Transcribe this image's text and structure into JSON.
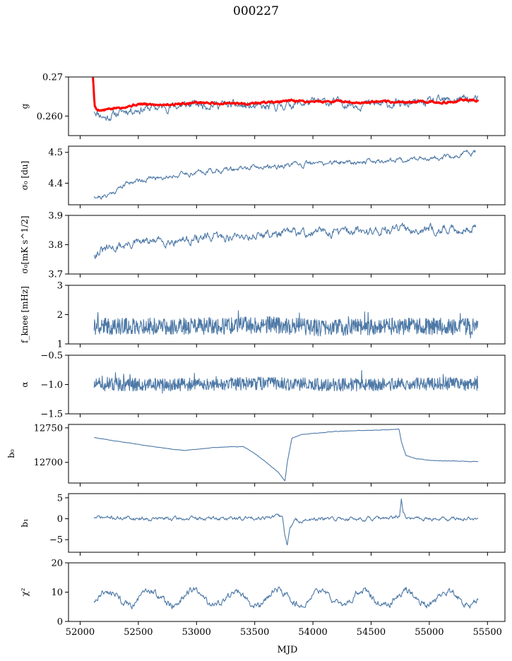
{
  "figure": {
    "title": "000227",
    "xlabel": "MJD"
  },
  "chart_data": [
    {
      "type": "line",
      "panel": "g",
      "ylabel": "g",
      "ylim": [
        0.255,
        0.27
      ],
      "yticks": [
        0.26,
        0.27
      ],
      "yticklabels": [
        "0.260",
        "0.27"
      ],
      "xlim": [
        51900,
        55650
      ],
      "series": [
        {
          "color": "#4e79a7",
          "kind": "noisy",
          "x": [
            52120,
            52170,
            52220,
            52300,
            52400,
            52600,
            52800,
            53000,
            53200,
            53400,
            53600,
            53800,
            54000,
            54200,
            54400,
            54600,
            54800,
            55000,
            55200,
            55300,
            55420
          ],
          "values": [
            0.2615,
            0.2605,
            0.2595,
            0.2605,
            0.2615,
            0.262,
            0.2625,
            0.263,
            0.263,
            0.2625,
            0.262,
            0.263,
            0.2635,
            0.2635,
            0.263,
            0.263,
            0.263,
            0.2635,
            0.264,
            0.2645,
            0.264
          ],
          "noise": 0.0008,
          "seed": 11
        },
        {
          "color": "#ff0000",
          "kind": "smooth",
          "x": [
            52110,
            52125,
            52140,
            52200,
            52300,
            52500,
            52800,
            53000,
            53200,
            53400,
            53600,
            53800,
            54000,
            54200,
            54400,
            54600,
            54800,
            55000,
            55200,
            55300,
            55420
          ],
          "values": [
            0.27,
            0.2625,
            0.2617,
            0.2615,
            0.262,
            0.263,
            0.263,
            0.2635,
            0.2632,
            0.2632,
            0.2635,
            0.2638,
            0.2637,
            0.2638,
            0.2634,
            0.2636,
            0.2635,
            0.2637,
            0.2634,
            0.2643,
            0.2638
          ],
          "noise": 0.0002,
          "seed": 5
        }
      ]
    },
    {
      "type": "line",
      "panel": "sigma0_du",
      "ylabel": "σ₀ [du]",
      "ylim": [
        4.33,
        4.52
      ],
      "yticks": [
        4.4,
        4.5
      ],
      "yticklabels": [
        "4.4",
        "4.5"
      ],
      "xlim": [
        51900,
        55650
      ],
      "series": [
        {
          "color": "#4e79a7",
          "kind": "noisy",
          "x": [
            52120,
            52200,
            52300,
            52400,
            52500,
            52700,
            52900,
            53100,
            53300,
            53500,
            53700,
            53900,
            54100,
            54300,
            54500,
            54700,
            54900,
            55100,
            55200,
            55300,
            55400
          ],
          "values": [
            4.36,
            4.355,
            4.375,
            4.4,
            4.41,
            4.42,
            4.43,
            4.44,
            4.445,
            4.45,
            4.455,
            4.46,
            4.465,
            4.47,
            4.47,
            4.475,
            4.48,
            4.485,
            4.48,
            4.5,
            4.5
          ],
          "noise": 0.006,
          "seed": 21
        }
      ]
    },
    {
      "type": "line",
      "panel": "sigma0_mk",
      "ylabel": "σ₀[mK s^1/2]",
      "ylim": [
        3.7,
        3.9
      ],
      "yticks": [
        3.7,
        3.8,
        3.9
      ],
      "yticklabels": [
        "3.7",
        "3.8",
        "3.9"
      ],
      "xlim": [
        51900,
        55650
      ],
      "series": [
        {
          "color": "#4e79a7",
          "kind": "noisy",
          "x": [
            52120,
            52200,
            52400,
            52600,
            52800,
            53000,
            53200,
            53400,
            53600,
            53800,
            54000,
            54200,
            54400,
            54600,
            54800,
            55000,
            55200,
            55300,
            55400
          ],
          "values": [
            3.77,
            3.78,
            3.8,
            3.81,
            3.815,
            3.82,
            3.825,
            3.83,
            3.835,
            3.84,
            3.84,
            3.845,
            3.845,
            3.85,
            3.855,
            3.855,
            3.85,
            3.855,
            3.855
          ],
          "noise": 0.011,
          "seed": 31
        }
      ]
    },
    {
      "type": "line",
      "panel": "fknee",
      "ylabel": "f_knee [mHz]",
      "ylim": [
        1,
        3
      ],
      "yticks": [
        1,
        2,
        3
      ],
      "yticklabels": [
        "1",
        "2",
        "3"
      ],
      "xlim": [
        51900,
        55650
      ],
      "series": [
        {
          "color": "#4e79a7",
          "kind": "spiky",
          "x": [
            52120,
            52600,
            53100,
            53600,
            54100,
            54600,
            55100,
            55420
          ],
          "values": [
            1.6,
            1.6,
            1.6,
            1.65,
            1.55,
            1.6,
            1.6,
            1.6
          ],
          "noise": 0.18,
          "seed": 41
        }
      ]
    },
    {
      "type": "line",
      "panel": "alpha",
      "ylabel": "α",
      "ylim": [
        -1.5,
        -0.5
      ],
      "yticks": [
        -1.5,
        -1.0,
        -0.5
      ],
      "yticklabels": [
        "−1.5",
        "−1.0",
        "−0.5"
      ],
      "xlim": [
        51900,
        55650
      ],
      "series": [
        {
          "color": "#4e79a7",
          "kind": "spiky",
          "x": [
            52120,
            52600,
            53100,
            53600,
            54100,
            54600,
            55100,
            55420
          ],
          "values": [
            -1.0,
            -1.0,
            -1.0,
            -0.98,
            -1.0,
            -1.0,
            -0.98,
            -1.0
          ],
          "noise": 0.07,
          "seed": 51
        }
      ]
    },
    {
      "type": "line",
      "panel": "b0",
      "ylabel": "b₀",
      "ylim": [
        12670,
        12755
      ],
      "yticks": [
        12700,
        12750
      ],
      "yticklabels": [
        "12700",
        "12750"
      ],
      "xlim": [
        51900,
        55650
      ],
      "series": [
        {
          "color": "#4e79a7",
          "kind": "smooth",
          "x": [
            52120,
            52300,
            52500,
            52700,
            52900,
            53000,
            53200,
            53400,
            53500,
            53600,
            53700,
            53760,
            53780,
            53820,
            53900,
            54000,
            54200,
            54400,
            54600,
            54740,
            54760,
            54800,
            54900,
            55000,
            55200,
            55420
          ],
          "values": [
            12736,
            12731,
            12726,
            12721,
            12717,
            12719,
            12722,
            12723,
            12713,
            12700,
            12686,
            12673,
            12700,
            12735,
            12740,
            12742,
            12745,
            12746,
            12747,
            12748,
            12730,
            12710,
            12705,
            12703,
            12702,
            12701
          ],
          "noise": 0.25,
          "seed": 61
        }
      ]
    },
    {
      "type": "line",
      "panel": "b1",
      "ylabel": "b₁",
      "ylim": [
        -8,
        6
      ],
      "yticks": [
        -5,
        0,
        5
      ],
      "yticklabels": [
        "−5",
        "0",
        "5"
      ],
      "xlim": [
        51900,
        55650
      ],
      "series": [
        {
          "color": "#4e79a7",
          "kind": "smooth",
          "x": [
            52120,
            52800,
            53400,
            53700,
            53740,
            53760,
            53780,
            53800,
            53850,
            54200,
            54700,
            54745,
            54760,
            54775,
            54800,
            55000,
            55420
          ],
          "values": [
            0.3,
            0.0,
            0.1,
            0.6,
            0.3,
            -4,
            -6.5,
            -2,
            -0.5,
            0.0,
            0.0,
            1.0,
            5.2,
            1.2,
            0.1,
            0.0,
            0.0
          ],
          "noise": 0.35,
          "seed": 71
        }
      ]
    },
    {
      "type": "line",
      "panel": "chi2",
      "ylabel": "χ²",
      "ylim": [
        0,
        20
      ],
      "yticks": [
        0,
        10,
        20
      ],
      "yticklabels": [
        "0",
        "10",
        "20"
      ],
      "xlim": [
        51900,
        55650
      ],
      "series": [
        {
          "color": "#4e79a7",
          "kind": "periodic",
          "x": [
            52120,
            55420
          ],
          "values": [
            8,
            8
          ],
          "amplitude": 2.5,
          "period": 365,
          "noise": 0.9,
          "seed": 81
        }
      ]
    }
  ],
  "x_axis": {
    "ticks": [
      52000,
      52500,
      53000,
      53500,
      54000,
      54500,
      55000,
      55500
    ],
    "ticklabels": [
      "52000",
      "52500",
      "53000",
      "53500",
      "54000",
      "54500",
      "55000",
      "55500"
    ]
  }
}
